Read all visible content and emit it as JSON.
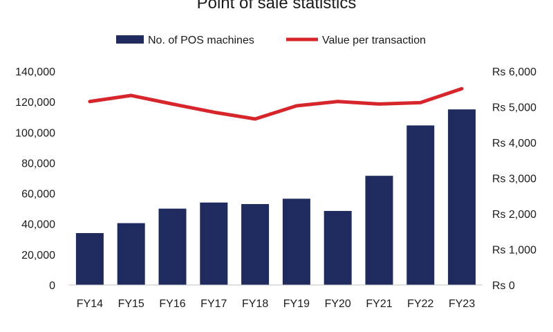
{
  "chart_data": {
    "type": "bar",
    "title": "Point of sale statistics",
    "categories": [
      "FY14",
      "FY15",
      "FY16",
      "FY17",
      "FY18",
      "FY19",
      "FY20",
      "FY21",
      "FY22",
      "FY23"
    ],
    "series": [
      {
        "name": "No. of POS machines",
        "type": "bar",
        "axis": "left",
        "color": "#1f2a5e",
        "values": [
          34000,
          40500,
          50000,
          54000,
          53000,
          56500,
          48500,
          71500,
          104500,
          115000
        ]
      },
      {
        "name": "Value per transaction",
        "type": "line",
        "axis": "right",
        "color": "#d7262b",
        "values": [
          5150,
          5320,
          5080,
          4850,
          4660,
          5030,
          5150,
          5080,
          5120,
          5510
        ]
      }
    ],
    "y_left": {
      "ylim": [
        0,
        140000
      ],
      "ticks": [
        0,
        20000,
        40000,
        60000,
        80000,
        100000,
        120000,
        140000
      ],
      "tick_labels": [
        "0",
        "20,000",
        "40,000",
        "60,000",
        "80,000",
        "100,000",
        "120,000",
        "140,000"
      ]
    },
    "y_right": {
      "ylim": [
        0,
        6000
      ],
      "ticks": [
        0,
        1000,
        2000,
        3000,
        4000,
        5000,
        6000
      ],
      "tick_labels": [
        "Rs 0",
        "Rs 1,000",
        "Rs 2,000",
        "Rs 3,000",
        "Rs 4,000",
        "Rs 5,000",
        "Rs 6,000"
      ]
    },
    "grid": false,
    "legend_position": "top"
  }
}
